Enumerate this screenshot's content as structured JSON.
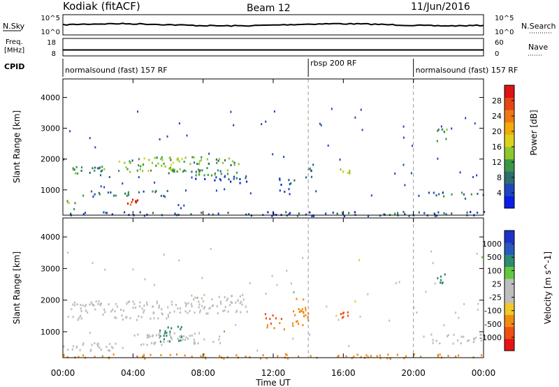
{
  "header": {
    "radar": "Kodiak (fitACF)",
    "beam": "Beam 12",
    "date": "11/Jun/2016"
  },
  "noise_panel": {
    "left_label": "N.Sky",
    "right_label": "N.Search",
    "left_ticks": [
      "10^5",
      "10^0"
    ],
    "right_ticks": [
      "10^5",
      "10^0"
    ],
    "level": 0.5
  },
  "freq_panel": {
    "left_label_1": "Freq.",
    "left_label_2": "[MHz]",
    "right_label": "Nave",
    "left_ticks": [
      "18",
      "8"
    ],
    "right_ticks": [
      "60",
      "0"
    ],
    "level": 0.18
  },
  "cpid": {
    "label": "CPID",
    "segments": [
      {
        "name": "normalsound (fast) 157 RF",
        "start": 0,
        "end": 14
      },
      {
        "name": "rbsp 200 RF",
        "start": 14,
        "end": 20
      },
      {
        "name": "normalsound (fast) 157 RF",
        "start": 20,
        "end": 24
      }
    ]
  },
  "colors": {
    "power_scale": [
      "#0a1ee6",
      "#1e46be",
      "#2d6e6e",
      "#3c9646",
      "#8cc82d",
      "#dcd21e",
      "#f0aa0a",
      "#f07814",
      "#e64614",
      "#dc1414"
    ],
    "velocity_scale": [
      "#e61414",
      "#f05014",
      "#f08c14",
      "#f0c828",
      "#bebebe",
      "#bebebe",
      "#64c83c",
      "#2d8c6e",
      "#285abe",
      "#1e32c8"
    ]
  },
  "chart_data": [
    {
      "type": "heatmap",
      "title": "",
      "xlabel": "Time UT",
      "ylabel": "Slant Range [km]",
      "xlim": [
        0,
        24
      ],
      "ylim": [
        180,
        4600
      ],
      "x_ticks": [
        "00:00",
        "04:00",
        "08:00",
        "12:00",
        "16:00",
        "20:00",
        "00:00"
      ],
      "y_ticks": [
        1000,
        2000,
        3000,
        4000
      ],
      "colorbar": {
        "label": "Power [dB]",
        "range": [
          0,
          32
        ],
        "ticks": [
          4,
          8,
          12,
          16,
          20,
          24,
          28
        ]
      },
      "regions": [
        {
          "t": [
            0.2,
            1.0
          ],
          "r": [
            400,
            700
          ],
          "value": 14
        },
        {
          "t": [
            0.8,
            6.0
          ],
          "r": [
            800,
            1000
          ],
          "value": 8
        },
        {
          "t": [
            3.6,
            4.3
          ],
          "r": [
            550,
            720
          ],
          "value": 28
        },
        {
          "t": [
            0.5,
            2.8
          ],
          "r": [
            1450,
            1800
          ],
          "value": 10
        },
        {
          "t": [
            3.0,
            7.0
          ],
          "r": [
            1600,
            2100
          ],
          "value": 14
        },
        {
          "t": [
            6.0,
            10.0
          ],
          "r": [
            1500,
            2100
          ],
          "value": 12
        },
        {
          "t": [
            7.5,
            10.5
          ],
          "r": [
            1250,
            1500
          ],
          "value": 6
        },
        {
          "t": [
            12.3,
            13.2
          ],
          "r": [
            850,
            1450
          ],
          "value": 5
        },
        {
          "t": [
            13.8,
            14.2
          ],
          "r": [
            1400,
            1800
          ],
          "value": 8
        },
        {
          "t": [
            15.8,
            16.5
          ],
          "r": [
            1550,
            1750
          ],
          "value": 14
        },
        {
          "t": [
            20.0,
            24.0
          ],
          "r": [
            750,
            950
          ],
          "value": 8
        },
        {
          "t": [
            21.3,
            21.9
          ],
          "r": [
            2500,
            3000
          ],
          "value": 10
        },
        {
          "t": [
            0.0,
            24.0
          ],
          "r": [
            180,
            320
          ],
          "value": 6
        }
      ]
    },
    {
      "type": "heatmap",
      "title": "",
      "xlabel": "Time UT",
      "ylabel": "Slant Range [km]",
      "xlim": [
        0,
        24
      ],
      "ylim": [
        180,
        4600
      ],
      "x_ticks": [
        "00:00",
        "04:00",
        "08:00",
        "12:00",
        "16:00",
        "20:00",
        "00:00"
      ],
      "y_ticks": [
        1000,
        2000,
        3000,
        4000
      ],
      "colorbar": {
        "label": "Velocity [m s^-1]",
        "ticks": [
          "1000",
          "500",
          "100",
          "25",
          "-25",
          "-100",
          "-500",
          "-1000"
        ]
      },
      "regions": [
        {
          "t": [
            0.0,
            3.0
          ],
          "r": [
            400,
            700
          ],
          "value": 0
        },
        {
          "t": [
            0.5,
            6.5
          ],
          "r": [
            1400,
            2000
          ],
          "value": 0
        },
        {
          "t": [
            4.0,
            9.0
          ],
          "r": [
            600,
            1000
          ],
          "value": 0
        },
        {
          "t": [
            6.5,
            10.5
          ],
          "r": [
            1600,
            2200
          ],
          "value": 0
        },
        {
          "t": [
            5.5,
            6.8
          ],
          "r": [
            700,
            1200
          ],
          "value": 150
        },
        {
          "t": [
            13.0,
            14.0
          ],
          "r": [
            1200,
            2100
          ],
          "value": -400
        },
        {
          "t": [
            11.5,
            12.6
          ],
          "r": [
            1100,
            1600
          ],
          "value": -500
        },
        {
          "t": [
            15.8,
            16.4
          ],
          "r": [
            1450,
            1700
          ],
          "value": -700
        },
        {
          "t": [
            20.5,
            24.0
          ],
          "r": [
            650,
            950
          ],
          "value": 0
        },
        {
          "t": [
            21.3,
            21.8
          ],
          "r": [
            2500,
            2900
          ],
          "value": 150
        },
        {
          "t": [
            0.0,
            24.0
          ],
          "r": [
            180,
            320
          ],
          "value": -150
        }
      ]
    }
  ]
}
